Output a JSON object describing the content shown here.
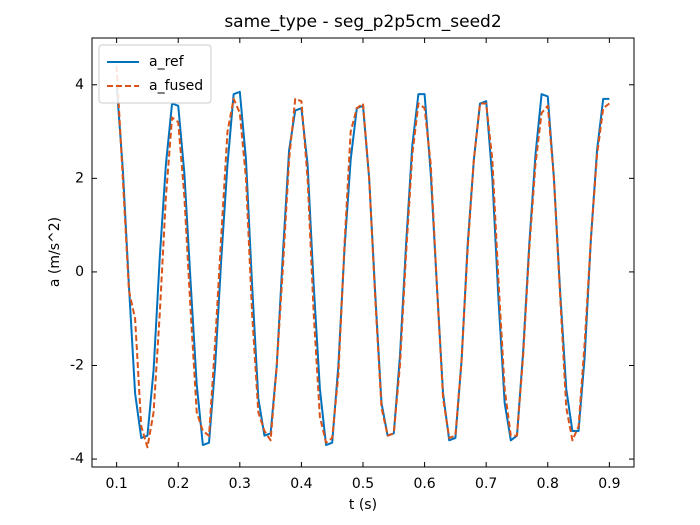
{
  "chart_data": {
    "type": "line",
    "title": "same_type - seg_p2p5cm_seed2",
    "x_label": "t (s)",
    "y_label": "a (m/s^2)",
    "x": [
      0.1,
      0.11,
      0.12,
      0.13,
      0.14,
      0.15,
      0.16,
      0.17,
      0.18,
      0.19,
      0.2,
      0.21,
      0.22,
      0.23,
      0.24,
      0.25,
      0.26,
      0.27,
      0.28,
      0.29,
      0.3,
      0.31,
      0.32,
      0.33,
      0.34,
      0.35,
      0.36,
      0.37,
      0.38,
      0.39,
      0.4,
      0.41,
      0.42,
      0.43,
      0.44,
      0.45,
      0.46,
      0.47,
      0.48,
      0.49,
      0.5,
      0.51,
      0.52,
      0.53,
      0.54,
      0.55,
      0.56,
      0.57,
      0.58,
      0.59,
      0.6,
      0.61,
      0.62,
      0.63,
      0.64,
      0.65,
      0.66,
      0.67,
      0.68,
      0.69,
      0.7,
      0.71,
      0.72,
      0.73,
      0.74,
      0.75,
      0.76,
      0.77,
      0.78,
      0.79,
      0.8,
      0.81,
      0.82,
      0.83,
      0.84,
      0.85,
      0.86,
      0.87,
      0.88,
      0.89,
      0.9
    ],
    "series": [
      {
        "name": "a_ref",
        "color": "#0072bd",
        "dash": false,
        "values": [
          4.0,
          2.2,
          -0.3,
          -2.6,
          -3.55,
          -3.5,
          -2.1,
          0.3,
          2.3,
          3.6,
          3.55,
          2.1,
          -0.2,
          -2.4,
          -3.7,
          -3.65,
          -2.0,
          0.3,
          2.3,
          3.8,
          3.85,
          2.4,
          -0.3,
          -2.7,
          -3.5,
          -3.45,
          -2.0,
          0.4,
          2.6,
          3.45,
          3.5,
          2.3,
          -0.3,
          -2.5,
          -3.7,
          -3.65,
          -2.0,
          0.5,
          2.4,
          3.5,
          3.55,
          2.0,
          -0.5,
          -2.8,
          -3.5,
          -3.45,
          -1.8,
          0.6,
          2.7,
          3.8,
          3.8,
          2.1,
          -0.3,
          -2.6,
          -3.6,
          -3.55,
          -1.9,
          0.6,
          2.4,
          3.6,
          3.65,
          2.0,
          -0.6,
          -2.8,
          -3.6,
          -3.5,
          -1.7,
          0.6,
          2.5,
          3.8,
          3.75,
          2.0,
          -0.4,
          -2.5,
          -3.4,
          -3.4,
          -1.8,
          0.7,
          2.6,
          3.7,
          3.7
        ]
      },
      {
        "name": "a_fused",
        "color": "#d95319",
        "dash": true,
        "values": [
          4.4,
          2.0,
          -0.4,
          -1.0,
          -3.3,
          -3.75,
          -3.0,
          -0.9,
          1.6,
          3.3,
          3.2,
          1.6,
          -0.8,
          -3.0,
          -3.4,
          -3.5,
          -1.5,
          0.8,
          3.0,
          3.7,
          3.4,
          2.0,
          -0.9,
          -3.0,
          -3.4,
          -3.6,
          -2.0,
          0.1,
          2.4,
          3.7,
          3.65,
          2.0,
          -0.9,
          -3.1,
          -3.65,
          -3.55,
          -2.2,
          0.6,
          3.0,
          3.5,
          3.6,
          2.0,
          -0.6,
          -2.9,
          -3.5,
          -3.45,
          -2.0,
          0.4,
          2.5,
          3.6,
          3.5,
          2.3,
          -0.3,
          -2.7,
          -3.55,
          -3.5,
          -1.9,
          0.5,
          2.4,
          3.6,
          3.6,
          2.4,
          -0.2,
          -2.5,
          -3.5,
          -3.5,
          -1.8,
          0.5,
          2.3,
          3.4,
          3.55,
          2.0,
          -0.5,
          -2.9,
          -3.6,
          -3.3,
          -1.5,
          0.7,
          2.5,
          3.5,
          3.6
        ]
      }
    ],
    "xlim": [
      0.06,
      0.94
    ],
    "ylim": [
      -4.17,
      5.0
    ],
    "xticks": [
      0.1,
      0.2,
      0.3,
      0.4,
      0.5,
      0.6,
      0.7,
      0.8,
      0.9
    ],
    "yticks": [
      -4,
      -2,
      0,
      2,
      4
    ],
    "legend": "upper left"
  }
}
